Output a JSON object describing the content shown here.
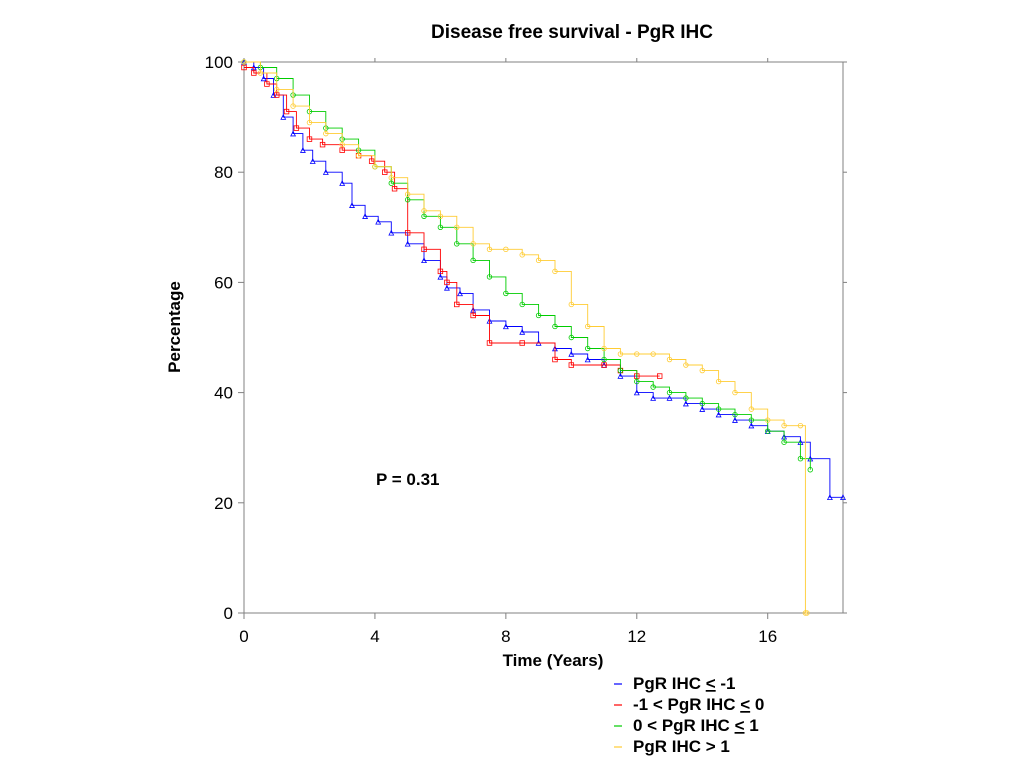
{
  "chart_data": {
    "type": "line",
    "title": "Disease free survival - PgR IHC",
    "xlabel": "Time (Years)",
    "ylabel": "Percentage",
    "xlim": [
      0,
      18.3
    ],
    "ylim": [
      0,
      100
    ],
    "xticks": [
      0,
      4,
      8,
      12,
      16
    ],
    "yticks": [
      0,
      20,
      40,
      60,
      80,
      100
    ],
    "grid": false,
    "annotation": "P = 0.31",
    "legend_position": "bottom-right",
    "series": [
      {
        "name": "PgR IHC ≤ -1",
        "label_parts": [
          "PgR IHC ",
          "≤",
          " -1"
        ],
        "color": "#0000ff",
        "marker": "triangle",
        "x": [
          0,
          0.3,
          0.6,
          0.9,
          1.2,
          1.5,
          1.8,
          2.1,
          2.5,
          3.0,
          3.3,
          3.7,
          4.1,
          4.5,
          5.0,
          5.5,
          6.0,
          6.2,
          6.6,
          7.0,
          7.5,
          8.0,
          8.5,
          9.0,
          9.5,
          10.0,
          10.5,
          11.0,
          11.5,
          12.0,
          12.5,
          13.0,
          13.5,
          14.0,
          14.5,
          15.0,
          15.5,
          16.0,
          16.5,
          17.0,
          17.3,
          17.9,
          18.3
        ],
        "y": [
          100,
          99,
          97,
          94,
          90,
          87,
          84,
          82,
          80,
          78,
          74,
          72,
          71,
          69,
          67,
          64,
          61,
          59,
          58,
          55,
          53,
          52,
          51,
          49,
          48,
          47,
          46,
          45,
          43,
          40,
          39,
          39,
          38,
          37,
          36,
          35,
          34,
          33,
          32,
          31,
          28,
          21,
          21
        ]
      },
      {
        "name": "-1 < PgR IHC ≤ 0",
        "label_parts": [
          "-1 < PgR IHC ",
          "≤",
          " 0"
        ],
        "color": "#ff0000",
        "marker": "square",
        "x": [
          0,
          0.3,
          0.7,
          1.0,
          1.3,
          1.6,
          2.0,
          2.4,
          3.0,
          3.5,
          3.9,
          4.3,
          4.6,
          5.0,
          5.5,
          6.0,
          6.2,
          6.5,
          7.0,
          7.5,
          8.5,
          9.5,
          10.0,
          11.0,
          11.5,
          12.0,
          12.7
        ],
        "y": [
          99,
          98,
          96,
          94,
          91,
          88,
          86,
          85,
          84,
          83,
          82,
          80,
          77,
          69,
          66,
          62,
          60,
          56,
          54,
          49,
          49,
          46,
          45,
          45,
          44,
          43,
          43
        ]
      },
      {
        "name": "0 < PgR IHC ≤ 1",
        "label_parts": [
          "0 < PgR IHC ",
          "≤",
          " 1"
        ],
        "color": "#00cc00",
        "marker": "circle",
        "x": [
          0,
          0.5,
          1.0,
          1.5,
          2.0,
          2.5,
          3.0,
          3.5,
          4.0,
          4.5,
          5.0,
          5.5,
          6.0,
          6.5,
          7.0,
          7.5,
          8.0,
          8.5,
          9.0,
          9.5,
          10.0,
          10.5,
          11.0,
          11.5,
          12.0,
          12.5,
          13.0,
          13.5,
          14.0,
          14.5,
          15.0,
          15.5,
          16.0,
          16.5,
          17.0,
          17.3
        ],
        "y": [
          100,
          99,
          97,
          94,
          91,
          88,
          86,
          84,
          81,
          78,
          75,
          72,
          70,
          67,
          64,
          61,
          58,
          56,
          54,
          52,
          50,
          48,
          46,
          44,
          42,
          41,
          40,
          39,
          38,
          37,
          36,
          35,
          33,
          31,
          28,
          26
        ]
      },
      {
        "name": "PgR IHC > 1",
        "label_parts": [
          "PgR IHC > 1"
        ],
        "color": "#ffcc33",
        "marker": "circle",
        "x": [
          0,
          0.5,
          1.0,
          1.5,
          2.0,
          2.5,
          3.0,
          3.5,
          4.0,
          4.5,
          5.0,
          5.5,
          6.0,
          6.5,
          7.0,
          7.5,
          8.0,
          8.5,
          9.0,
          9.5,
          10.0,
          10.5,
          11.0,
          11.5,
          12.0,
          12.5,
          13.0,
          13.5,
          14.0,
          14.5,
          15.0,
          15.5,
          16.0,
          16.5,
          17.0,
          17.15,
          17.2
        ],
        "y": [
          100,
          98,
          95,
          92,
          89,
          87,
          85,
          83,
          81,
          79,
          76,
          73,
          72,
          70,
          67,
          66,
          66,
          65,
          64,
          62,
          56,
          52,
          48,
          47,
          47,
          47,
          46,
          45,
          44,
          42,
          40,
          37,
          35,
          34,
          34,
          0,
          0
        ]
      }
    ]
  }
}
